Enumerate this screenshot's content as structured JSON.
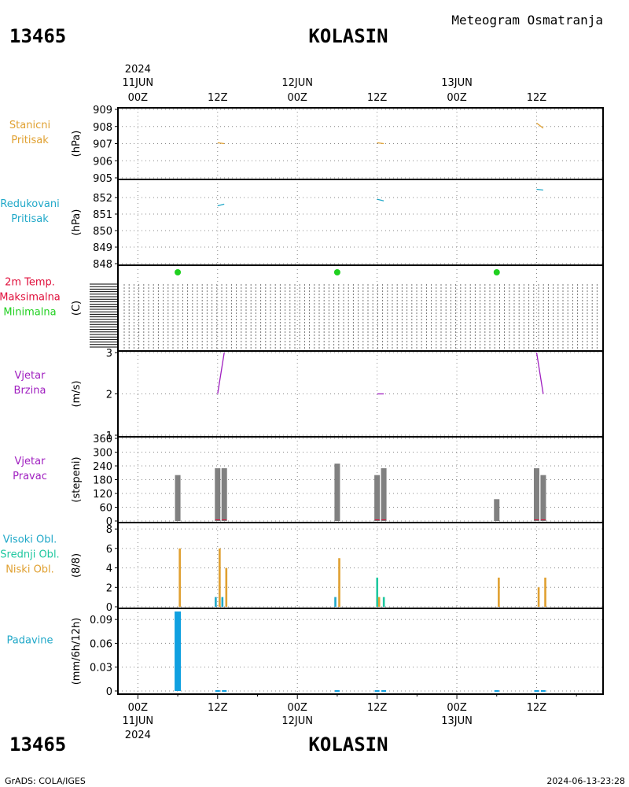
{
  "header": {
    "station_id": "13465",
    "station_name": "KOLASIN",
    "product": "Meteogram Osmatranja"
  },
  "footer": {
    "station_id": "13465",
    "station_name": "KOLASIN",
    "credit": "GrADS: COLA/IGES",
    "timestamp": "2024-06-13-23:28"
  },
  "colors": {
    "orange": "#e0a030",
    "cyan": "#20a8c8",
    "red": "#e0103c",
    "green": "#20d020",
    "purple": "#a020c0",
    "gray": "#808080",
    "teal": "#20c8a0",
    "blue": "#10a0e0"
  },
  "time_axis": {
    "year": "2024",
    "day_labels": [
      "11JUN",
      "12JUN",
      "13JUN"
    ],
    "tick_labels": [
      "00Z",
      "12Z",
      "00Z",
      "12Z",
      "00Z",
      "12Z"
    ],
    "tick_hours": [
      0,
      12,
      24,
      36,
      48,
      60
    ],
    "range_hours": [
      -3,
      70
    ]
  },
  "chart_data": [
    {
      "type": "line",
      "panel": "stanicni",
      "labels": [
        {
          "text": "Stanicni",
          "color": "#e0a030"
        },
        {
          "text": "Pritisak",
          "color": "#e0a030"
        }
      ],
      "ylabel": "(hPa)",
      "ylim": [
        905,
        909
      ],
      "yticks": [
        905,
        906,
        907,
        908,
        909
      ],
      "series": [
        {
          "color": "#e0a030",
          "segments": [
            [
              [
                12,
                907.05
              ],
              [
                13,
                907.0
              ]
            ],
            [
              [
                36,
                907.05
              ],
              [
                37,
                907.0
              ]
            ],
            [
              [
                60,
                908.2
              ],
              [
                61,
                907.9
              ]
            ]
          ]
        }
      ]
    },
    {
      "type": "line",
      "panel": "redukovani",
      "labels": [
        {
          "text": "Redukovani",
          "color": "#20a8c8"
        },
        {
          "text": "Pritisak",
          "color": "#20a8c8"
        }
      ],
      "ylabel": "(hPa)",
      "ylim": [
        848,
        853
      ],
      "yticks": [
        848,
        849,
        850,
        851,
        852
      ],
      "series": [
        {
          "color": "#20a8c8",
          "segments": [
            [
              [
                12,
                851.5
              ],
              [
                13,
                851.6
              ]
            ],
            [
              [
                36,
                851.9
              ],
              [
                37,
                851.8
              ]
            ],
            [
              [
                60,
                852.5
              ],
              [
                61,
                852.45
              ]
            ]
          ]
        }
      ]
    },
    {
      "type": "scatter",
      "panel": "temperatura",
      "labels": [
        {
          "text": "2m Temp.",
          "color": "#e0103c"
        },
        {
          "text": "Maksimalna",
          "color": "#e0103c"
        },
        {
          "text": "Minimalna",
          "color": "#20d020"
        }
      ],
      "ylabel": "(C)",
      "points": [
        {
          "x": 6,
          "color": "#20d020"
        },
        {
          "x": 30,
          "color": "#20d020"
        },
        {
          "x": 54,
          "color": "#20d020"
        }
      ]
    },
    {
      "type": "line",
      "panel": "vjetar_brzina",
      "labels": [
        {
          "text": "Vjetar",
          "color": "#a020c0"
        },
        {
          "text": "Brzina",
          "color": "#a020c0"
        }
      ],
      "ylabel": "(m/s)",
      "ylim": [
        1,
        3
      ],
      "yticks": [
        1,
        2,
        3
      ],
      "series": [
        {
          "color": "#a020c0",
          "segments": [
            [
              [
                12,
                2.0
              ],
              [
                13,
                3.0
              ]
            ],
            [
              [
                36,
                2.0
              ],
              [
                37,
                2.0
              ]
            ],
            [
              [
                60,
                3.0
              ],
              [
                61,
                2.0
              ]
            ]
          ]
        }
      ]
    },
    {
      "type": "bar",
      "panel": "vjetar_pravac",
      "labels": [
        {
          "text": "Vjetar",
          "color": "#a020c0"
        },
        {
          "text": "Pravac",
          "color": "#a020c0"
        }
      ],
      "ylabel": "(stepeni)",
      "ylim": [
        0,
        360
      ],
      "yticks": [
        0,
        60,
        120,
        180,
        240,
        300,
        360
      ],
      "bars": [
        {
          "x": 6,
          "value": 200
        },
        {
          "x": 12,
          "value": 230
        },
        {
          "x": 13,
          "value": 230
        },
        {
          "x": 30,
          "value": 250
        },
        {
          "x": 36,
          "value": 200
        },
        {
          "x": 37,
          "value": 230
        },
        {
          "x": 54,
          "value": 95
        },
        {
          "x": 60,
          "value": 230
        },
        {
          "x": 61,
          "value": 200
        }
      ]
    },
    {
      "type": "bar",
      "panel": "oblacnost",
      "labels": [
        {
          "text": "Visoki Obl.",
          "color": "#20a8c8"
        },
        {
          "text": "Srednji Obl.",
          "color": "#20c8a0"
        },
        {
          "text": "Niski Obl.",
          "color": "#e0a030"
        }
      ],
      "ylabel": "(8/8)",
      "ylim": [
        0,
        8.5
      ],
      "yticks": [
        0,
        2,
        4,
        6,
        8
      ],
      "series": [
        {
          "name": "Visoki Obl.",
          "color": "#20a8c8",
          "bars": [
            {
              "x": 12,
              "value": 1
            },
            {
              "x": 13,
              "value": 1
            },
            {
              "x": 30,
              "value": 1
            }
          ]
        },
        {
          "name": "Srednji Obl.",
          "color": "#20c8a0",
          "bars": [
            {
              "x": 36,
              "value": 3
            },
            {
              "x": 37,
              "value": 1
            }
          ]
        },
        {
          "name": "Niski Obl.",
          "color": "#e0a030",
          "bars": [
            {
              "x": 6,
              "value": 6
            },
            {
              "x": 12,
              "value": 6
            },
            {
              "x": 13,
              "value": 4
            },
            {
              "x": 30,
              "value": 5
            },
            {
              "x": 36,
              "value": 1
            },
            {
              "x": 54,
              "value": 3
            },
            {
              "x": 60,
              "value": 2
            },
            {
              "x": 61,
              "value": 3
            }
          ]
        }
      ]
    },
    {
      "type": "bar",
      "panel": "padavine",
      "labels": [
        {
          "text": "Padavine",
          "color": "#20a8c8"
        }
      ],
      "ylabel": "(mm/6h/12h)",
      "ylim": [
        -0.002,
        0.102
      ],
      "yticks": [
        0,
        0.03,
        0.06,
        0.09
      ],
      "ytick_labels": [
        "0",
        "0.03",
        "0.06",
        "0.09"
      ],
      "bars": [
        {
          "x": 6,
          "value": 0.1
        }
      ]
    }
  ]
}
